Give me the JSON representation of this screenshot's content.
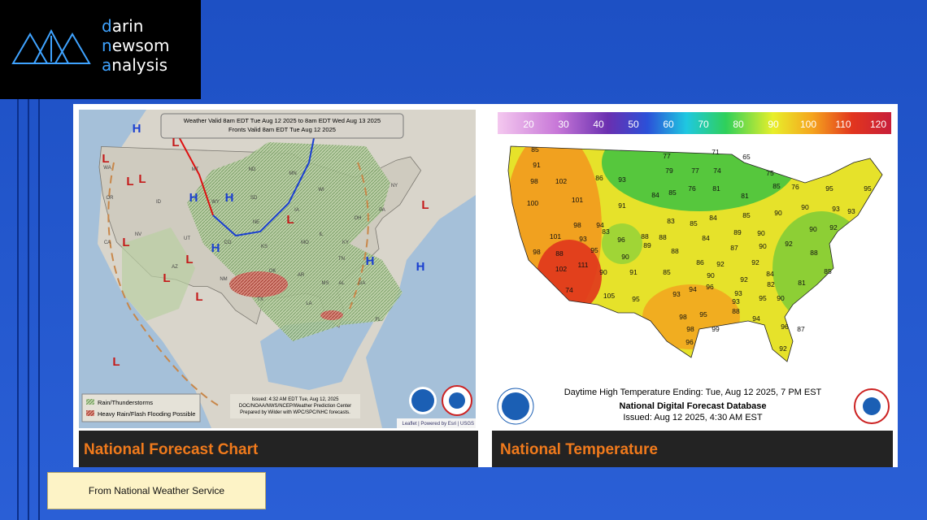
{
  "logo": {
    "lines": [
      "darin",
      "newsom",
      "analysis"
    ]
  },
  "panels": [
    {
      "title": "National Forecast Chart",
      "header": [
        "Weather Valid 8am EDT Tue Aug 12 2025 to 8am EDT Wed Aug 13 2025",
        "Fronts Valid 8am EDT Tue Aug 12 2025"
      ],
      "legend": [
        "Rain/Thunderstorms",
        "Heavy Rain/Flash Flooding Possible"
      ],
      "issued": [
        "Issued: 4:32 AM EDT  Tue, Aug 12, 2025",
        "DOC/NOAA/NWS/NCEP/Weather Prediction Center",
        "Prepared by Wilder with WPC/SPC/NHC forecasts."
      ],
      "attribution": "Leaflet | Powered by Esri | USGS",
      "pressure_labels": [
        "H",
        "L",
        "L",
        "L",
        "H",
        "H",
        "L",
        "H",
        "L",
        "L",
        "L",
        "L",
        "H",
        "H",
        "L",
        "L",
        "L"
      ],
      "state_labels": [
        "WA",
        "OR",
        "CA",
        "NV",
        "ID",
        "UT",
        "AZ",
        "MT",
        "WY",
        "CO",
        "NM",
        "ND",
        "SD",
        "NE",
        "KS",
        "OK",
        "TX",
        "MN",
        "IA",
        "MO",
        "AR",
        "LA",
        "WI",
        "IL",
        "MS",
        "AL",
        "GA",
        "FL",
        "TN",
        "KY",
        "OH",
        "PA",
        "NY"
      ]
    },
    {
      "title": "National Temperature",
      "scale_labels": [
        20,
        30,
        40,
        50,
        60,
        70,
        80,
        90,
        100,
        110,
        120
      ],
      "temperature_labels": [
        85,
        91,
        98,
        102,
        86,
        93,
        77,
        71,
        65,
        79,
        77,
        74,
        75,
        76,
        84,
        85,
        76,
        81,
        81,
        85,
        100,
        101,
        91,
        83,
        85,
        84,
        85,
        90,
        90,
        95,
        95,
        93,
        93,
        98,
        94,
        83,
        88,
        88,
        84,
        89,
        90,
        92,
        90,
        92,
        101,
        93,
        96,
        89,
        98,
        88,
        95,
        90,
        88,
        86,
        87,
        90,
        92,
        88,
        85,
        102,
        111,
        90,
        91,
        85,
        92,
        90,
        92,
        84,
        81,
        82,
        74,
        105,
        95,
        93,
        94,
        96,
        93,
        95,
        90,
        98,
        95,
        88,
        94,
        93,
        98,
        99,
        96,
        96,
        92,
        87
      ],
      "footer": [
        "Daytime High Temperature Ending: Tue, Aug 12 2025, 7 PM EST",
        "National Digital Forecast Database",
        "Issued: Aug 12 2025, 4:30 AM EST"
      ]
    }
  ],
  "caption": "From National Weather Service"
}
